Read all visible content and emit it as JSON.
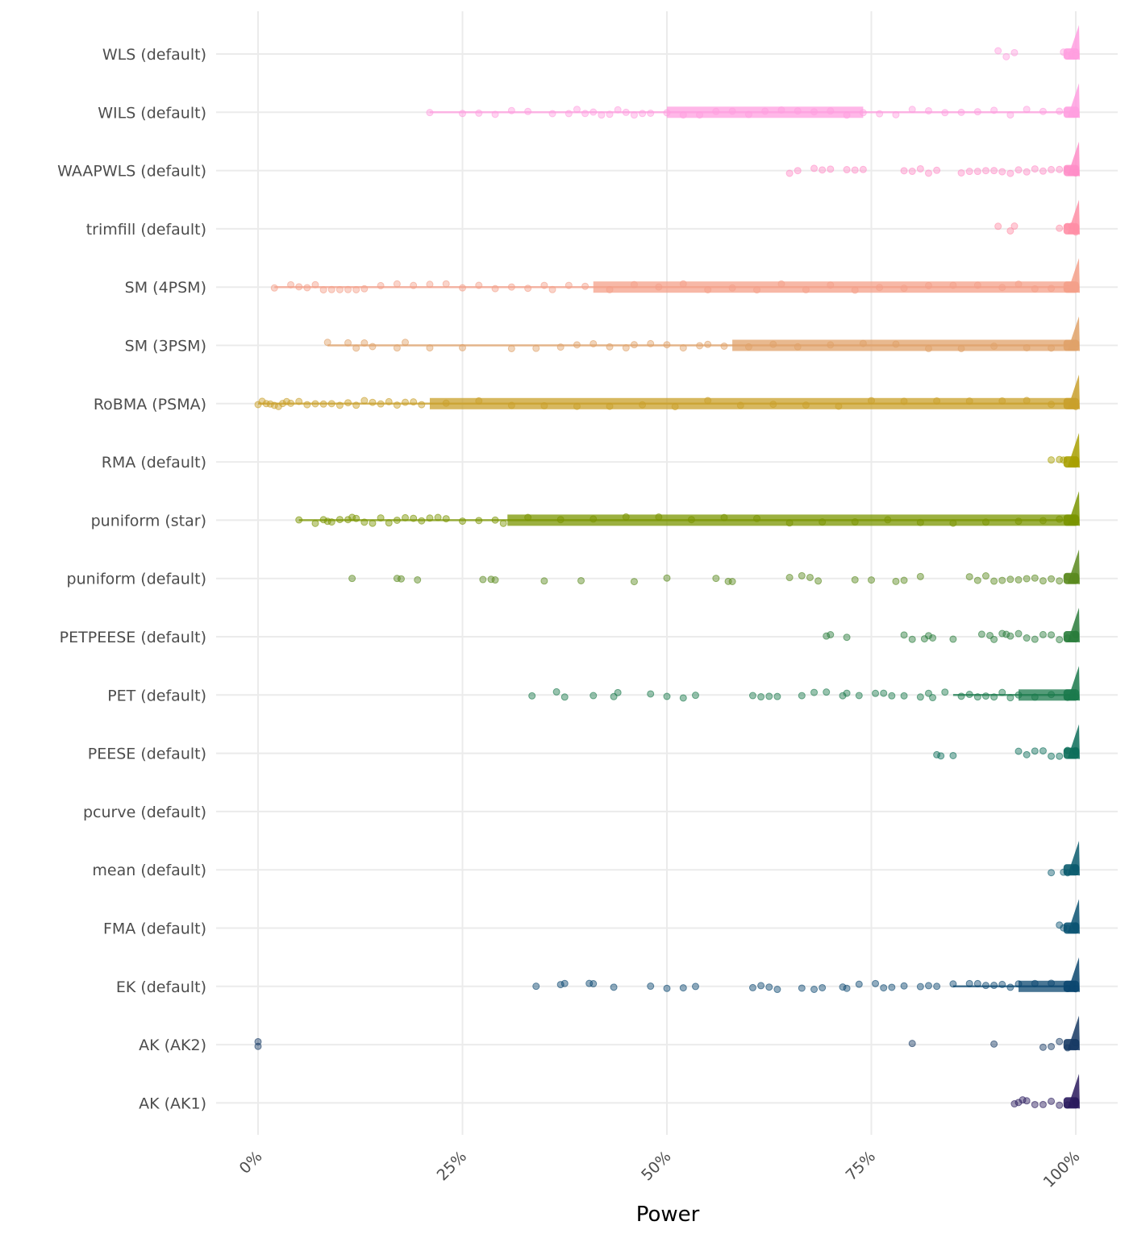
{
  "chart_data": {
    "type": "scatter",
    "xlabel": "Power",
    "x_ticks": [
      "0%",
      "25%",
      "50%",
      "75%",
      "100%"
    ],
    "x_tick_values": [
      0,
      0.25,
      0.5,
      0.75,
      1.0
    ],
    "xlim": [
      0,
      1
    ],
    "grid": true,
    "legend": "none",
    "series": [
      {
        "name": "WLS (default)",
        "color": "#ff9fe0",
        "band": null,
        "points": [
          0.905,
          0.915,
          0.925,
          0.985,
          0.99,
          0.995,
          1.0,
          1.0,
          1.0
        ]
      },
      {
        "name": "WILS (default)",
        "color": "#ff9fe0",
        "band": [
          0.5,
          0.74
        ],
        "line": [
          0.21,
          1.0
        ],
        "points": [
          0.21,
          0.25,
          0.27,
          0.29,
          0.31,
          0.33,
          0.36,
          0.38,
          0.39,
          0.4,
          0.41,
          0.42,
          0.43,
          0.44,
          0.45,
          0.46,
          0.47,
          0.48,
          0.5,
          0.52,
          0.54,
          0.56,
          0.58,
          0.6,
          0.62,
          0.64,
          0.66,
          0.68,
          0.7,
          0.72,
          0.74,
          0.76,
          0.78,
          0.8,
          0.82,
          0.84,
          0.86,
          0.88,
          0.9,
          0.92,
          0.94,
          0.96,
          0.98,
          1.0
        ]
      },
      {
        "name": "WAAPWLS (default)",
        "color": "#ff8ec8",
        "band": null,
        "points": [
          0.65,
          0.66,
          0.68,
          0.69,
          0.7,
          0.72,
          0.73,
          0.74,
          0.79,
          0.8,
          0.81,
          0.82,
          0.83,
          0.86,
          0.87,
          0.88,
          0.89,
          0.9,
          0.91,
          0.92,
          0.93,
          0.94,
          0.95,
          0.96,
          0.97,
          0.98,
          0.99,
          1.0,
          1.0
        ]
      },
      {
        "name": "trimfill (default)",
        "color": "#ff8fa6",
        "band": null,
        "points": [
          0.905,
          0.92,
          0.925,
          0.98,
          0.99,
          0.995,
          1.0,
          1.0
        ]
      },
      {
        "name": "SM (4PSM)",
        "color": "#f4a08a",
        "band": [
          0.41,
          1.0
        ],
        "line": [
          0.02,
          1.0
        ],
        "points": [
          0.02,
          0.04,
          0.05,
          0.06,
          0.07,
          0.08,
          0.09,
          0.1,
          0.11,
          0.12,
          0.13,
          0.15,
          0.17,
          0.19,
          0.21,
          0.23,
          0.25,
          0.27,
          0.29,
          0.31,
          0.33,
          0.35,
          0.36,
          0.38,
          0.4,
          0.43,
          0.46,
          0.49,
          0.52,
          0.55,
          0.58,
          0.61,
          0.64,
          0.67,
          0.7,
          0.73,
          0.76,
          0.79,
          0.82,
          0.85,
          0.88,
          0.91,
          0.93,
          0.95,
          0.97,
          0.99,
          1.0
        ]
      },
      {
        "name": "SM (3PSM)",
        "color": "#e0a269",
        "band": [
          0.58,
          1.0
        ],
        "line": [
          0.085,
          1.0
        ],
        "points": [
          0.085,
          0.11,
          0.12,
          0.13,
          0.14,
          0.17,
          0.18,
          0.21,
          0.25,
          0.31,
          0.34,
          0.37,
          0.39,
          0.41,
          0.43,
          0.45,
          0.46,
          0.48,
          0.5,
          0.52,
          0.54,
          0.55,
          0.57,
          0.6,
          0.63,
          0.66,
          0.7,
          0.74,
          0.78,
          0.82,
          0.86,
          0.9,
          0.94,
          0.97,
          1.0
        ]
      },
      {
        "name": "RoBMA (PSMA)",
        "color": "#c9a02b",
        "band": [
          0.21,
          1.0
        ],
        "line": [
          0.0,
          1.0
        ],
        "points": [
          0.0,
          0.005,
          0.01,
          0.015,
          0.02,
          0.025,
          0.03,
          0.035,
          0.04,
          0.05,
          0.06,
          0.07,
          0.08,
          0.09,
          0.1,
          0.11,
          0.12,
          0.13,
          0.14,
          0.15,
          0.16,
          0.17,
          0.18,
          0.19,
          0.2,
          0.23,
          0.27,
          0.31,
          0.35,
          0.39,
          0.43,
          0.47,
          0.51,
          0.55,
          0.59,
          0.63,
          0.67,
          0.71,
          0.75,
          0.79,
          0.83,
          0.87,
          0.91,
          0.94,
          0.97,
          1.0
        ]
      },
      {
        "name": "RMA (default)",
        "color": "#a8a000",
        "band": null,
        "points": [
          0.97,
          0.98,
          0.985,
          1.0,
          1.0
        ]
      },
      {
        "name": "puniform (star)",
        "color": "#7a9500",
        "band": [
          0.305,
          1.0
        ],
        "line": [
          0.05,
          1.0
        ],
        "points": [
          0.05,
          0.07,
          0.08,
          0.085,
          0.09,
          0.1,
          0.11,
          0.115,
          0.12,
          0.13,
          0.14,
          0.15,
          0.16,
          0.17,
          0.18,
          0.19,
          0.2,
          0.21,
          0.22,
          0.23,
          0.25,
          0.27,
          0.29,
          0.3,
          0.33,
          0.37,
          0.41,
          0.45,
          0.49,
          0.53,
          0.57,
          0.61,
          0.65,
          0.69,
          0.73,
          0.77,
          0.81,
          0.85,
          0.89,
          0.93,
          0.96,
          0.98,
          1.0
        ]
      },
      {
        "name": "puniform (default)",
        "color": "#5a8a1e",
        "band": null,
        "points": [
          0.115,
          0.17,
          0.175,
          0.195,
          0.275,
          0.285,
          0.29,
          0.35,
          0.395,
          0.46,
          0.5,
          0.56,
          0.575,
          0.58,
          0.65,
          0.665,
          0.675,
          0.685,
          0.73,
          0.75,
          0.78,
          0.79,
          0.81,
          0.87,
          0.88,
          0.89,
          0.9,
          0.91,
          0.92,
          0.93,
          0.94,
          0.95,
          0.96,
          0.97,
          0.98,
          0.99,
          1.0,
          1.0
        ]
      },
      {
        "name": "PETPEESE (default)",
        "color": "#2a7d3c",
        "band": null,
        "points": [
          0.695,
          0.7,
          0.72,
          0.79,
          0.8,
          0.815,
          0.82,
          0.825,
          0.85,
          0.885,
          0.895,
          0.9,
          0.91,
          0.915,
          0.92,
          0.93,
          0.94,
          0.95,
          0.96,
          0.97,
          0.98,
          0.99,
          1.0,
          1.0
        ]
      },
      {
        "name": "PET (default)",
        "color": "#1b7a4c",
        "band": [
          0.93,
          1.0
        ],
        "line": [
          0.85,
          1.0
        ],
        "points": [
          0.335,
          0.365,
          0.375,
          0.41,
          0.435,
          0.44,
          0.48,
          0.5,
          0.52,
          0.535,
          0.605,
          0.615,
          0.625,
          0.635,
          0.665,
          0.68,
          0.695,
          0.715,
          0.72,
          0.735,
          0.755,
          0.765,
          0.775,
          0.79,
          0.81,
          0.82,
          0.825,
          0.84,
          0.86,
          0.87,
          0.88,
          0.89,
          0.9,
          0.91,
          0.92,
          0.93,
          0.95,
          0.97,
          0.99,
          1.0
        ]
      },
      {
        "name": "PEESE (default)",
        "color": "#0d6e5a",
        "band": null,
        "points": [
          0.83,
          0.835,
          0.85,
          0.93,
          0.94,
          0.95,
          0.96,
          0.97,
          0.98,
          0.99,
          1.0,
          1.0
        ]
      },
      {
        "name": "pcurve (default)",
        "color": "#0e6468",
        "band": null,
        "points": []
      },
      {
        "name": "mean (default)",
        "color": "#0b5c6e",
        "band": null,
        "points": [
          0.97,
          0.985,
          0.99,
          1.0,
          1.0
        ]
      },
      {
        "name": "FMA (default)",
        "color": "#0b5473",
        "band": null,
        "points": [
          0.98,
          0.985,
          0.99,
          1.0,
          1.0
        ]
      },
      {
        "name": "EK (default)",
        "color": "#0c4870",
        "band": [
          0.93,
          1.0
        ],
        "line": [
          0.85,
          1.0
        ],
        "points": [
          0.34,
          0.37,
          0.375,
          0.405,
          0.41,
          0.435,
          0.48,
          0.5,
          0.52,
          0.535,
          0.605,
          0.615,
          0.625,
          0.635,
          0.665,
          0.68,
          0.69,
          0.715,
          0.72,
          0.735,
          0.755,
          0.765,
          0.775,
          0.79,
          0.81,
          0.82,
          0.83,
          0.85,
          0.87,
          0.88,
          0.89,
          0.9,
          0.91,
          0.92,
          0.93,
          0.95,
          0.97,
          0.99,
          1.0
        ]
      },
      {
        "name": "AK (AK2)",
        "color": "#173a64",
        "band": null,
        "points": [
          0.0,
          0.0,
          0.8,
          0.9,
          0.96,
          0.97,
          0.98,
          0.99,
          1.0
        ]
      },
      {
        "name": "AK (AK1)",
        "color": "#2a1a5e",
        "band": null,
        "points": [
          0.925,
          0.93,
          0.935,
          0.94,
          0.95,
          0.96,
          0.97,
          0.98,
          0.99,
          1.0,
          1.0
        ]
      }
    ]
  }
}
